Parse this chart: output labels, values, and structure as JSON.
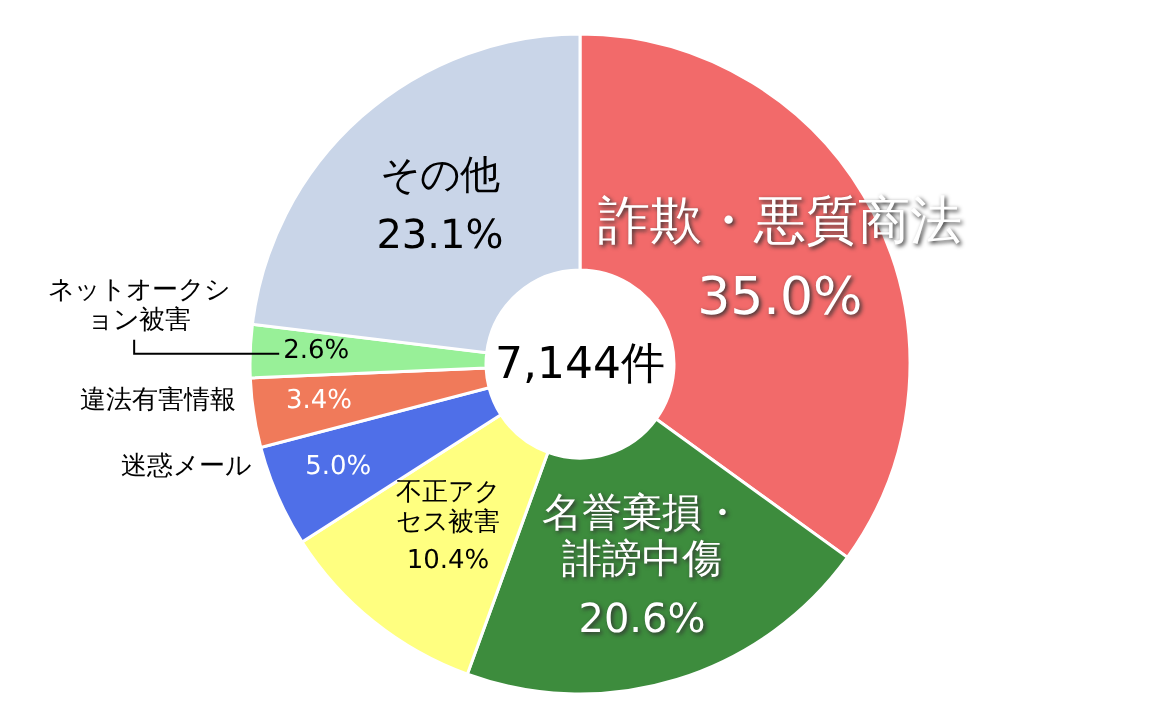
{
  "chart_data": {
    "type": "donut",
    "categories": [
      "詐欺・悪質商法",
      "名誉棄損・誹謗中傷",
      "不正アクセス被害",
      "迷惑メール",
      "違法有害情報",
      "ネットオークション被害",
      "その他"
    ],
    "values": [
      35.0,
      20.6,
      10.4,
      5.0,
      3.4,
      2.6,
      23.1
    ],
    "colors": [
      "#f26a6a",
      "#3d8c3d",
      "#ffff80",
      "#4f6fe8",
      "#f07a5a",
      "#98f098",
      "#c9d5e8"
    ],
    "value_labels": [
      "35.0%",
      "20.6%",
      "10.4%",
      "5.0%",
      "3.4%",
      "2.6%",
      "23.1%"
    ],
    "annotations": [
      "7,144件"
    ]
  }
}
